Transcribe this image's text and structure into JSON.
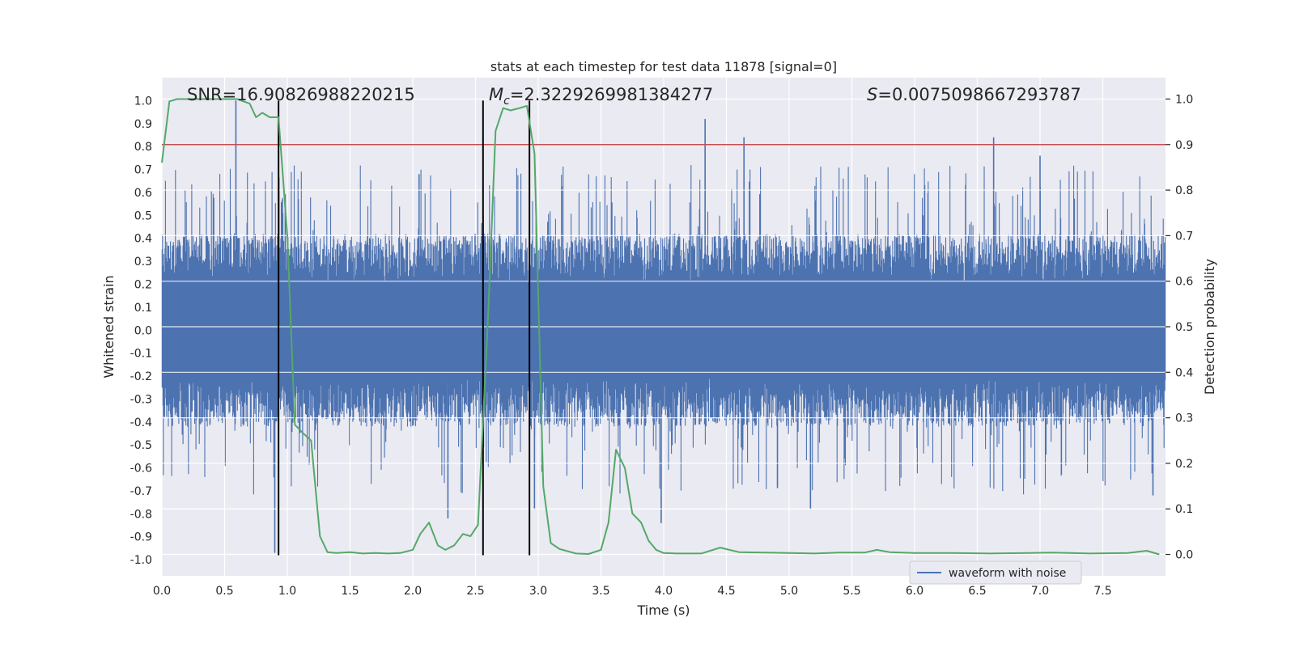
{
  "chart_data": {
    "type": "line",
    "title": "stats at each timestep for test data 11878 [signal=0]",
    "xlabel": "Time (s)",
    "ylabel": "Whitened strain",
    "y2label": "Detection probability",
    "xlim": [
      0,
      8
    ],
    "ylim": [
      -1.07,
      1.1
    ],
    "y2lim": [
      -0.047,
      1.047
    ],
    "xticks": [
      0.0,
      0.5,
      1.0,
      1.5,
      2.0,
      2.5,
      3.0,
      3.5,
      4.0,
      4.5,
      5.0,
      5.5,
      6.0,
      6.5,
      7.0,
      7.5
    ],
    "yticks": [
      -1.0,
      -0.9,
      -0.8,
      -0.7,
      -0.6,
      -0.5,
      -0.4,
      -0.3,
      -0.2,
      -0.1,
      0.0,
      0.1,
      0.2,
      0.3,
      0.4,
      0.5,
      0.6,
      0.7,
      0.8,
      0.9,
      1.0
    ],
    "y2ticks": [
      0.0,
      0.1,
      0.2,
      0.3,
      0.4,
      0.5,
      0.6,
      0.7,
      0.8,
      0.9,
      1.0
    ],
    "grid": true,
    "legend": {
      "placement": "lower-right",
      "entries": [
        "waveform with noise"
      ]
    },
    "annotations": {
      "snr": {
        "label": "SNR=16.90826988220215",
        "x": 0.2
      },
      "mc": {
        "label_symbol": "M",
        "label_sub": "c",
        "label_value": "=2.3229269981384277",
        "x": 2.6
      },
      "s": {
        "label_symbol": "S",
        "label_value": "=0.0075098667293787",
        "x": 5.6
      }
    },
    "threshold": {
      "y2": 0.9,
      "color": "#c44e52"
    },
    "vertical_lines": {
      "x": [
        0.93,
        2.56,
        2.93
      ],
      "y_range": [
        -0.98,
        1.0
      ],
      "color": "#000000"
    },
    "series": [
      {
        "name": "waveform with noise",
        "axis": "left",
        "color": "#4c72b0",
        "kind": "noise-band",
        "envelope_typical": 0.42,
        "spikes": [
          {
            "x": 0.59,
            "y": 1.0
          },
          {
            "x": 0.9,
            "y": -0.97
          },
          {
            "x": 2.05,
            "y": 0.68
          },
          {
            "x": 2.28,
            "y": -0.82
          },
          {
            "x": 2.97,
            "y": -0.78
          },
          {
            "x": 3.98,
            "y": -0.84
          },
          {
            "x": 4.33,
            "y": 0.92
          },
          {
            "x": 4.64,
            "y": 0.84
          },
          {
            "x": 5.17,
            "y": -0.78
          },
          {
            "x": 6.63,
            "y": 0.84
          },
          {
            "x": 7.0,
            "y": 0.76
          },
          {
            "x": 7.9,
            "y": -0.72
          }
        ]
      },
      {
        "name": "detection probability",
        "axis": "right",
        "color": "#55a868",
        "x": [
          0.0,
          0.06,
          0.12,
          0.2,
          0.3,
          0.4,
          0.5,
          0.6,
          0.7,
          0.75,
          0.8,
          0.86,
          0.93,
          1.0,
          1.06,
          1.13,
          1.19,
          1.26,
          1.32,
          1.39,
          1.5,
          1.6,
          1.7,
          1.8,
          1.9,
          2.0,
          2.06,
          2.13,
          2.2,
          2.26,
          2.33,
          2.4,
          2.46,
          2.52,
          2.6,
          2.66,
          2.72,
          2.78,
          2.85,
          2.91,
          2.97,
          3.04,
          3.1,
          3.17,
          3.3,
          3.4,
          3.5,
          3.56,
          3.62,
          3.69,
          3.75,
          3.82,
          3.88,
          3.94,
          4.0,
          4.1,
          4.3,
          4.45,
          4.6,
          4.8,
          5.0,
          5.2,
          5.4,
          5.6,
          5.7,
          5.8,
          6.0,
          6.3,
          6.6,
          6.9,
          7.1,
          7.4,
          7.7,
          7.85,
          7.95
        ],
        "y": [
          0.86,
          0.995,
          1.0,
          1.0,
          1.0,
          1.0,
          1.0,
          1.0,
          0.99,
          0.96,
          0.97,
          0.96,
          0.96,
          0.7,
          0.285,
          0.265,
          0.25,
          0.04,
          0.005,
          0.003,
          0.005,
          0.002,
          0.003,
          0.002,
          0.003,
          0.01,
          0.045,
          0.07,
          0.02,
          0.01,
          0.02,
          0.045,
          0.04,
          0.065,
          0.52,
          0.93,
          0.98,
          0.975,
          0.98,
          0.985,
          0.88,
          0.15,
          0.025,
          0.012,
          0.002,
          0.001,
          0.01,
          0.07,
          0.23,
          0.19,
          0.09,
          0.07,
          0.03,
          0.01,
          0.003,
          0.002,
          0.002,
          0.015,
          0.005,
          0.004,
          0.003,
          0.002,
          0.004,
          0.004,
          0.01,
          0.005,
          0.003,
          0.003,
          0.002,
          0.003,
          0.004,
          0.002,
          0.003,
          0.008,
          0.0
        ]
      }
    ]
  }
}
